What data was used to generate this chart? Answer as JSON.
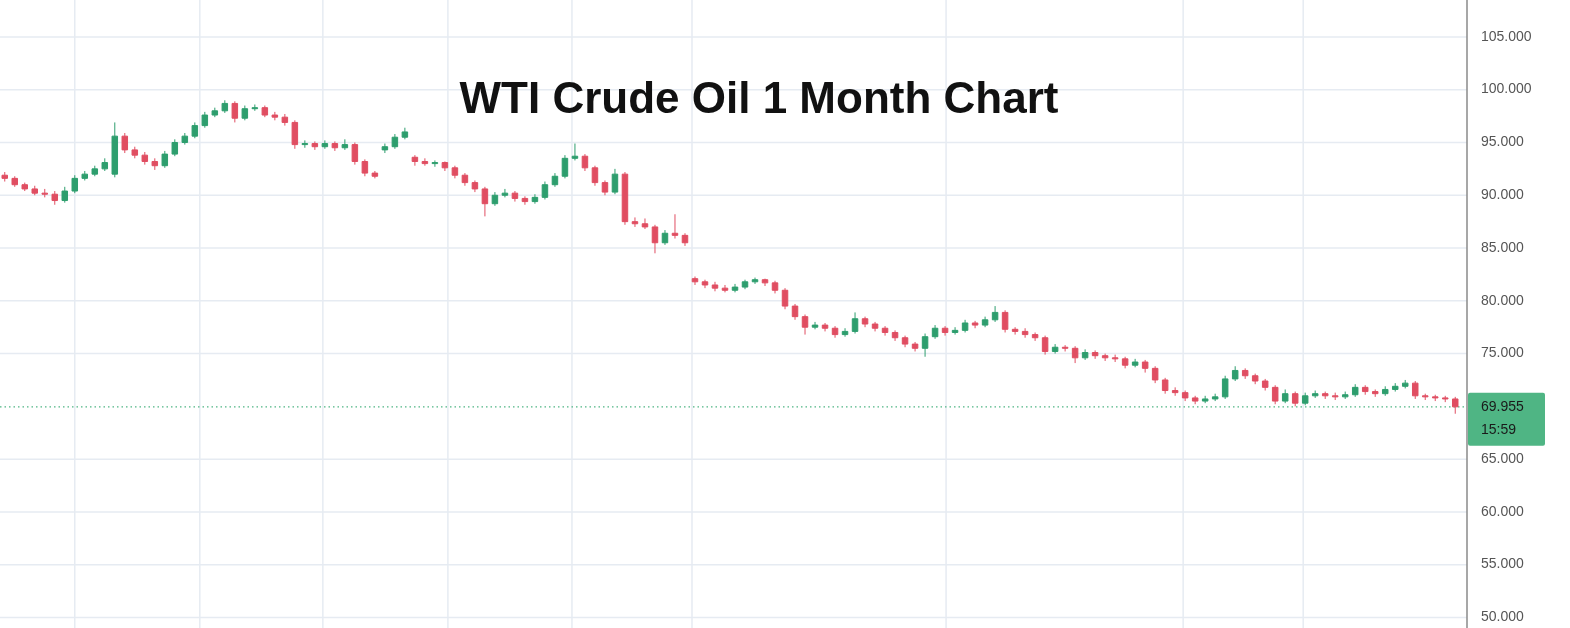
{
  "chart_data": {
    "type": "candlestick",
    "title": "WTI Crude Oil 1 Month Chart",
    "categories": [
      null,
      null,
      null,
      null,
      null,
      null,
      null,
      null,
      null,
      null,
      null,
      null,
      null,
      null,
      null,
      null,
      null,
      null,
      null,
      null,
      null,
      null,
      null,
      null,
      null,
      null,
      null,
      null,
      null,
      null,
      null,
      null,
      null,
      null,
      null,
      null,
      null,
      null,
      null,
      null,
      null,
      null,
      null,
      null,
      null,
      null,
      null,
      null,
      null,
      null,
      null,
      null,
      null,
      null,
      null,
      null,
      null,
      null,
      null,
      null,
      null,
      null,
      null,
      null,
      null,
      null,
      null,
      null,
      null,
      null,
      null,
      null,
      null,
      null,
      null,
      null,
      null,
      null,
      null,
      null,
      null,
      null,
      null,
      null,
      null,
      null,
      null,
      null,
      null,
      null,
      null,
      null,
      null,
      null,
      null,
      null,
      null,
      null,
      null,
      null,
      null,
      null,
      null,
      null,
      null,
      null,
      null,
      null,
      null,
      null,
      null,
      null,
      null,
      null,
      null,
      null,
      null,
      null,
      null,
      null,
      null,
      null,
      null,
      null,
      null,
      null,
      null,
      null,
      null,
      null,
      null,
      null,
      null,
      null,
      null,
      null,
      null,
      null,
      null,
      null,
      null,
      null,
      null,
      null,
      null,
      null
    ],
    "ohlc": [
      [
        91.9,
        92.2,
        91.3,
        91.6
      ],
      [
        91.6,
        91.8,
        90.8,
        91.0
      ],
      [
        91.0,
        91.2,
        90.4,
        90.6
      ],
      [
        90.6,
        90.9,
        90.0,
        90.2
      ],
      [
        90.2,
        90.6,
        89.8,
        90.1
      ],
      [
        90.1,
        90.4,
        89.1,
        89.5
      ],
      [
        89.5,
        90.8,
        89.3,
        90.4
      ],
      [
        90.4,
        91.9,
        90.2,
        91.6
      ],
      [
        91.6,
        92.3,
        91.4,
        92.0
      ],
      [
        92.0,
        92.8,
        91.8,
        92.5
      ],
      [
        92.5,
        93.5,
        92.3,
        93.1
      ],
      [
        92.0,
        96.9,
        91.7,
        95.6
      ],
      [
        95.6,
        95.9,
        94.0,
        94.3
      ],
      [
        94.3,
        94.6,
        93.5,
        93.8
      ],
      [
        93.8,
        94.1,
        92.9,
        93.2
      ],
      [
        93.2,
        93.5,
        92.4,
        92.8
      ],
      [
        92.8,
        94.2,
        92.6,
        93.9
      ],
      [
        93.9,
        95.3,
        93.7,
        95.0
      ],
      [
        95.0,
        95.9,
        94.8,
        95.6
      ],
      [
        95.6,
        96.9,
        95.4,
        96.6
      ],
      [
        96.6,
        97.9,
        96.4,
        97.6
      ],
      [
        97.6,
        98.3,
        97.4,
        98.0
      ],
      [
        98.0,
        99.0,
        97.8,
        98.7
      ],
      [
        98.7,
        98.9,
        96.9,
        97.3
      ],
      [
        97.3,
        98.5,
        97.1,
        98.2
      ],
      [
        98.2,
        98.6,
        98.0,
        98.3
      ],
      [
        98.3,
        98.5,
        97.4,
        97.6
      ],
      [
        97.6,
        97.9,
        97.1,
        97.4
      ],
      [
        97.4,
        97.7,
        96.6,
        96.9
      ],
      [
        96.9,
        97.1,
        94.4,
        94.8
      ],
      [
        94.8,
        95.2,
        94.5,
        94.9
      ],
      [
        94.9,
        95.1,
        94.3,
        94.6
      ],
      [
        94.6,
        95.2,
        94.4,
        94.9
      ],
      [
        94.9,
        95.1,
        94.2,
        94.5
      ],
      [
        94.5,
        95.3,
        94.3,
        94.8
      ],
      [
        94.8,
        95.0,
        92.9,
        93.2
      ],
      [
        93.2,
        93.4,
        91.8,
        92.1
      ],
      [
        92.1,
        92.3,
        91.6,
        91.8
      ],
      [
        94.3,
        94.9,
        94.0,
        94.6
      ],
      [
        94.6,
        95.8,
        94.4,
        95.5
      ],
      [
        95.5,
        96.4,
        95.3,
        96.0
      ],
      [
        93.6,
        93.8,
        92.8,
        93.2
      ],
      [
        93.2,
        93.5,
        92.8,
        93.0
      ],
      [
        93.0,
        93.3,
        92.7,
        93.1
      ],
      [
        93.1,
        93.2,
        92.3,
        92.6
      ],
      [
        92.6,
        92.8,
        91.6,
        91.9
      ],
      [
        91.9,
        92.1,
        90.9,
        91.2
      ],
      [
        91.2,
        91.4,
        90.3,
        90.6
      ],
      [
        90.6,
        90.8,
        88.0,
        89.2
      ],
      [
        89.2,
        90.3,
        89.0,
        90.0
      ],
      [
        90.0,
        90.6,
        89.8,
        90.2
      ],
      [
        90.2,
        90.4,
        89.4,
        89.7
      ],
      [
        89.7,
        89.9,
        89.1,
        89.4
      ],
      [
        89.4,
        90.1,
        89.2,
        89.8
      ],
      [
        89.8,
        91.3,
        89.6,
        91.0
      ],
      [
        91.0,
        92.1,
        90.8,
        91.8
      ],
      [
        91.8,
        93.8,
        91.6,
        93.5
      ],
      [
        93.5,
        94.9,
        93.3,
        93.7
      ],
      [
        93.7,
        93.9,
        92.3,
        92.6
      ],
      [
        92.6,
        92.8,
        90.9,
        91.2
      ],
      [
        91.2,
        91.4,
        90.0,
        90.3
      ],
      [
        90.3,
        92.5,
        90.1,
        92.0
      ],
      [
        92.0,
        92.2,
        87.2,
        87.5
      ],
      [
        87.5,
        87.9,
        87.0,
        87.3
      ],
      [
        87.3,
        87.8,
        86.8,
        87.0
      ],
      [
        87.0,
        87.2,
        84.5,
        85.5
      ],
      [
        85.5,
        86.7,
        85.3,
        86.4
      ],
      [
        86.4,
        88.2,
        85.9,
        86.2
      ],
      [
        86.2,
        86.4,
        85.2,
        85.5
      ],
      [
        82.1,
        82.3,
        81.5,
        81.8
      ],
      [
        81.8,
        82.0,
        81.2,
        81.5
      ],
      [
        81.5,
        81.8,
        80.9,
        81.2
      ],
      [
        81.2,
        81.5,
        80.8,
        81.0
      ],
      [
        81.0,
        81.6,
        80.8,
        81.3
      ],
      [
        81.3,
        82.0,
        81.1,
        81.8
      ],
      [
        81.8,
        82.2,
        81.6,
        82.0
      ],
      [
        82.0,
        82.1,
        81.4,
        81.7
      ],
      [
        81.7,
        81.9,
        80.7,
        81.0
      ],
      [
        81.0,
        81.2,
        79.2,
        79.5
      ],
      [
        79.5,
        79.7,
        78.2,
        78.5
      ],
      [
        78.5,
        78.7,
        76.8,
        77.5
      ],
      [
        77.5,
        78.0,
        77.3,
        77.7
      ],
      [
        77.7,
        77.9,
        77.1,
        77.4
      ],
      [
        77.4,
        77.6,
        76.5,
        76.8
      ],
      [
        76.8,
        77.4,
        76.6,
        77.1
      ],
      [
        77.1,
        78.9,
        76.9,
        78.3
      ],
      [
        78.3,
        78.5,
        77.5,
        77.8
      ],
      [
        77.8,
        78.0,
        77.1,
        77.4
      ],
      [
        77.4,
        77.6,
        76.7,
        77.0
      ],
      [
        77.0,
        77.2,
        76.2,
        76.5
      ],
      [
        76.5,
        76.7,
        75.6,
        75.9
      ],
      [
        75.9,
        76.1,
        75.2,
        75.5
      ],
      [
        75.5,
        76.9,
        74.7,
        76.6
      ],
      [
        76.6,
        77.7,
        76.4,
        77.4
      ],
      [
        77.4,
        77.6,
        76.7,
        77.0
      ],
      [
        77.0,
        77.5,
        76.8,
        77.2
      ],
      [
        77.2,
        78.2,
        77.0,
        77.9
      ],
      [
        77.9,
        78.1,
        77.4,
        77.7
      ],
      [
        77.7,
        78.5,
        77.5,
        78.2
      ],
      [
        78.2,
        79.5,
        78.0,
        78.9
      ],
      [
        78.9,
        79.1,
        77.0,
        77.3
      ],
      [
        77.3,
        77.5,
        76.8,
        77.1
      ],
      [
        77.1,
        77.4,
        76.5,
        76.8
      ],
      [
        76.8,
        77.0,
        76.2,
        76.5
      ],
      [
        76.5,
        76.7,
        74.9,
        75.2
      ],
      [
        75.2,
        75.9,
        75.0,
        75.6
      ],
      [
        75.6,
        75.8,
        75.2,
        75.5
      ],
      [
        75.5,
        75.7,
        74.1,
        74.6
      ],
      [
        74.6,
        75.4,
        74.4,
        75.1
      ],
      [
        75.1,
        75.3,
        74.5,
        74.8
      ],
      [
        74.8,
        75.0,
        74.3,
        74.6
      ],
      [
        74.6,
        74.9,
        74.2,
        74.5
      ],
      [
        74.5,
        74.7,
        73.6,
        73.9
      ],
      [
        73.9,
        74.5,
        73.7,
        74.2
      ],
      [
        74.2,
        74.4,
        73.2,
        73.6
      ],
      [
        73.6,
        73.8,
        72.2,
        72.5
      ],
      [
        72.5,
        72.7,
        71.2,
        71.5
      ],
      [
        71.5,
        71.8,
        71.0,
        71.3
      ],
      [
        71.3,
        71.5,
        70.5,
        70.8
      ],
      [
        70.8,
        71.0,
        70.2,
        70.5
      ],
      [
        70.5,
        71.0,
        70.3,
        70.7
      ],
      [
        70.7,
        71.2,
        70.5,
        70.9
      ],
      [
        70.9,
        72.9,
        70.7,
        72.6
      ],
      [
        72.6,
        73.8,
        72.4,
        73.4
      ],
      [
        73.4,
        73.6,
        72.6,
        72.9
      ],
      [
        72.9,
        73.1,
        72.1,
        72.4
      ],
      [
        72.4,
        72.6,
        71.5,
        71.8
      ],
      [
        71.8,
        72.0,
        70.2,
        70.5
      ],
      [
        70.5,
        71.6,
        70.3,
        71.2
      ],
      [
        71.2,
        71.4,
        70.0,
        70.3
      ],
      [
        70.3,
        71.3,
        70.1,
        71.0
      ],
      [
        71.0,
        71.5,
        70.8,
        71.2
      ],
      [
        71.2,
        71.4,
        70.7,
        71.0
      ],
      [
        71.0,
        71.3,
        70.6,
        70.9
      ],
      [
        70.9,
        71.4,
        70.7,
        71.1
      ],
      [
        71.1,
        72.1,
        70.9,
        71.8
      ],
      [
        71.8,
        72.0,
        71.1,
        71.4
      ],
      [
        71.4,
        71.6,
        70.9,
        71.2
      ],
      [
        71.2,
        71.9,
        71.0,
        71.6
      ],
      [
        71.6,
        72.2,
        71.4,
        71.9
      ],
      [
        71.9,
        72.5,
        71.7,
        72.2
      ],
      [
        72.2,
        72.4,
        70.7,
        71.0
      ],
      [
        71.0,
        71.2,
        70.6,
        70.9
      ],
      [
        70.9,
        71.1,
        70.5,
        70.8
      ],
      [
        70.8,
        71.0,
        70.4,
        70.7
      ],
      [
        70.7,
        70.9,
        69.3,
        69.955
      ]
    ],
    "colors": [
      "#e04e62",
      "#e04e62",
      "#e04e62",
      "#e04e62",
      "#e04e62",
      "#e04e62",
      "#2e9e6e",
      "#2e9e6e",
      "#2e9e6e",
      "#2e9e6e",
      "#2e9e6e",
      "#2e9e6e",
      "#e04e62",
      "#e04e62",
      "#e04e62",
      "#e04e62",
      "#2e9e6e",
      "#2e9e6e",
      "#2e9e6e",
      "#2e9e6e",
      "#2e9e6e",
      "#2e9e6e",
      "#2e9e6e",
      "#e04e62",
      "#2e9e6e",
      "#2e9e6e",
      "#e04e62",
      "#e04e62",
      "#e04e62",
      "#e04e62",
      "#2e9e6e",
      "#e04e62",
      "#2e9e6e",
      "#e04e62",
      "#2e9e6e",
      "#e04e62",
      "#e04e62",
      "#e04e62",
      "#2e9e6e",
      "#2e9e6e",
      "#2e9e6e",
      "#e04e62",
      "#e04e62",
      "#2e9e6e",
      "#e04e62",
      "#e04e62",
      "#e04e62",
      "#e04e62",
      "#e04e62",
      "#2e9e6e",
      "#2e9e6e",
      "#e04e62",
      "#e04e62",
      "#2e9e6e",
      "#2e9e6e",
      "#2e9e6e",
      "#2e9e6e",
      "#2e9e6e",
      "#e04e62",
      "#e04e62",
      "#e04e62",
      "#2e9e6e",
      "#e04e62",
      "#e04e62",
      "#e04e62",
      "#e04e62",
      "#2e9e6e",
      "#e04e62",
      "#e04e62",
      "#e04e62",
      "#e04e62",
      "#e04e62",
      "#e04e62",
      "#2e9e6e",
      "#2e9e6e",
      "#2e9e6e",
      "#e04e62",
      "#e04e62",
      "#e04e62",
      "#e04e62",
      "#e04e62",
      "#2e9e6e",
      "#e04e62",
      "#e04e62",
      "#2e9e6e",
      "#2e9e6e",
      "#e04e62",
      "#e04e62",
      "#e04e62",
      "#e04e62",
      "#e04e62",
      "#e04e62",
      "#2e9e6e",
      "#2e9e6e",
      "#e04e62",
      "#2e9e6e",
      "#2e9e6e",
      "#e04e62",
      "#2e9e6e",
      "#2e9e6e",
      "#e04e62",
      "#e04e62",
      "#e04e62",
      "#e04e62",
      "#e04e62",
      "#2e9e6e",
      "#e04e62",
      "#e04e62",
      "#2e9e6e",
      "#e04e62",
      "#e04e62",
      "#e04e62",
      "#e04e62",
      "#2e9e6e",
      "#e04e62",
      "#e04e62",
      "#e04e62",
      "#e04e62",
      "#e04e62",
      "#e04e62",
      "#2e9e6e",
      "#2e9e6e",
      "#2e9e6e",
      "#2e9e6e",
      "#e04e62",
      "#e04e62",
      "#e04e62",
      "#e04e62",
      "#2e9e6e",
      "#e04e62",
      "#2e9e6e",
      "#2e9e6e",
      "#e04e62",
      "#e04e62",
      "#2e9e6e",
      "#2e9e6e",
      "#e04e62",
      "#e04e62",
      "#2e9e6e",
      "#2e9e6e",
      "#2e9e6e",
      "#e04e62",
      "#e04e62",
      "#e04e62",
      "#e04e62",
      "#e04e62"
    ],
    "ylim": [
      49,
      108.5
    ],
    "yticks": [
      {
        "value": 50,
        "label": "50.000"
      },
      {
        "value": 55,
        "label": "55.000"
      },
      {
        "value": 60,
        "label": "60.000"
      },
      {
        "value": 65,
        "label": "65.000"
      },
      {
        "value": 75,
        "label": "75.000"
      },
      {
        "value": 80,
        "label": "80.000"
      },
      {
        "value": 85,
        "label": "85.000"
      },
      {
        "value": 90,
        "label": "90.000"
      },
      {
        "value": 95,
        "label": "95.000"
      },
      {
        "value": 100,
        "label": "100.000"
      },
      {
        "value": 105,
        "label": "105.000"
      }
    ],
    "grid": true,
    "tick_labels": "y",
    "ref_lines": [
      {
        "axis": "y",
        "value": 69.955,
        "label": "69.955\n15:59",
        "color": "#4fb584",
        "line_style": "dotted"
      }
    ]
  }
}
